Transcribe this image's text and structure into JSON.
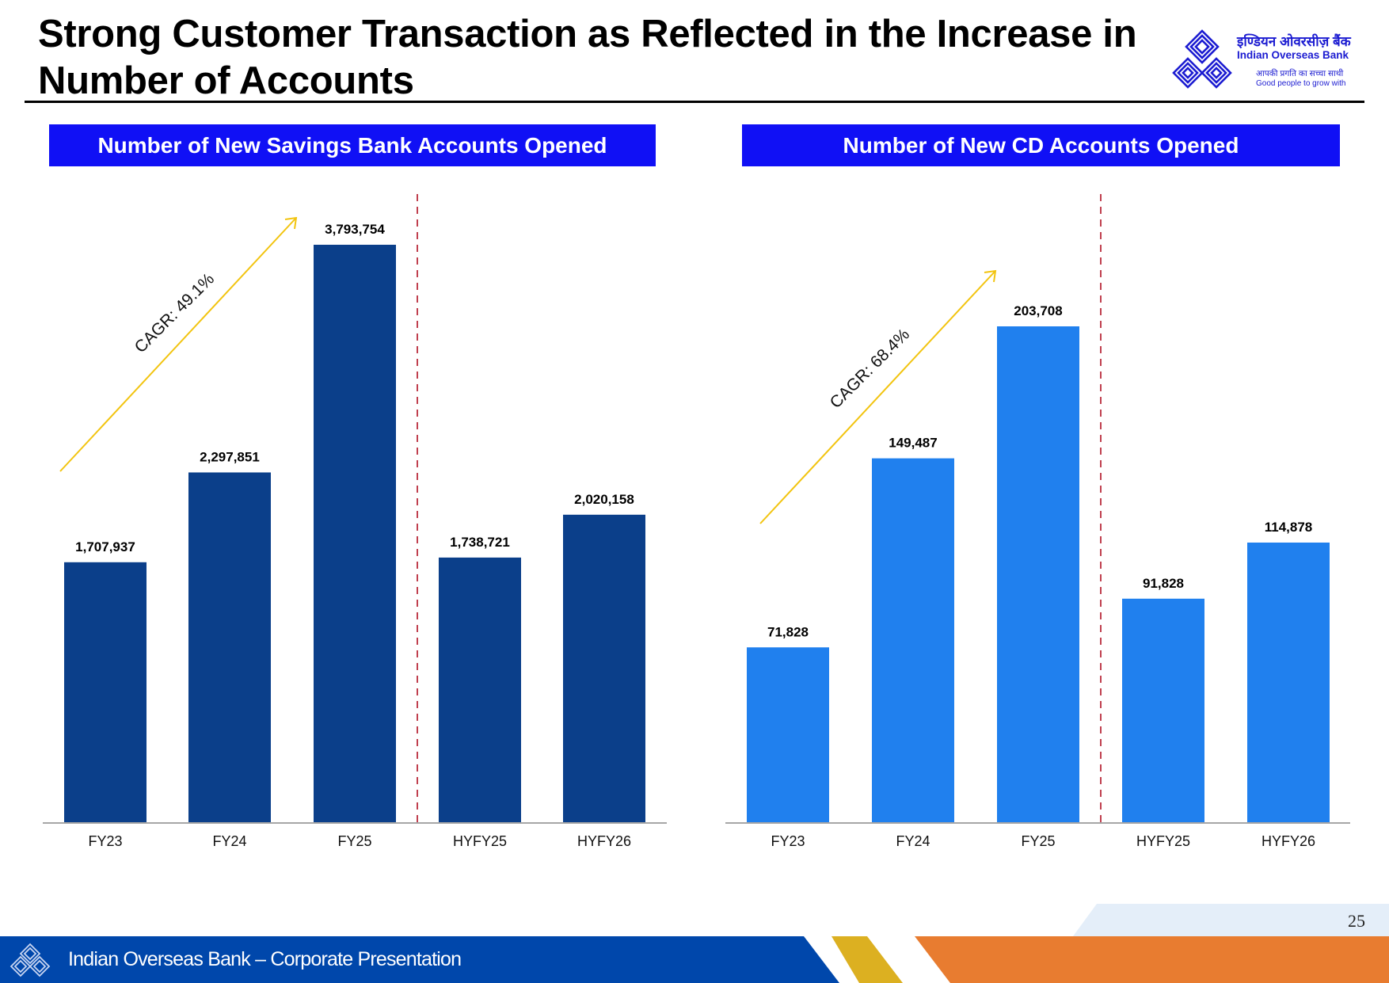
{
  "slide": {
    "title": "Strong Customer Transaction as Reflected in the Increase in Number of Accounts",
    "page_number": "25",
    "footer_text": "Indian Overseas Bank – Corporate Presentation"
  },
  "logo": {
    "hindi_name": "इण्डियन ओवरसीज़ बैंक",
    "english_name": "Indian Overseas Bank",
    "hindi_tagline": "आपकी प्रगति का सच्चा साथी",
    "english_tagline": "Good people to grow with"
  },
  "colors": {
    "header_blue": "#1010f5",
    "savings_bar": "#0b3f8a",
    "cd_bar": "#2080ee",
    "cagr_arrow": "#f2c40f",
    "divider": "#c0404f",
    "footer_blue": "#0047ab",
    "footer_yellow": "#dcb021",
    "footer_orange": "#e87c30"
  },
  "chart_data": [
    {
      "type": "bar",
      "title": "Number of New Savings Bank Accounts Opened",
      "categories": [
        "FY23",
        "FY24",
        "FY25",
        "HYFY25",
        "HYFY26"
      ],
      "values": [
        1707937,
        2297851,
        3793754,
        1738721,
        2020158
      ],
      "value_labels": [
        "1,707,937",
        "2,297,851",
        "3,793,754",
        "1,738,721",
        "2,020,158"
      ],
      "annotation": "CAGR: 49.1%",
      "xlabel": "",
      "ylabel": "",
      "ylim": [
        0,
        3793754
      ],
      "grid": false,
      "divider_after_index": 2
    },
    {
      "type": "bar",
      "title": "Number of New CD Accounts Opened",
      "categories": [
        "FY23",
        "FY24",
        "FY25",
        "HYFY25",
        "HYFY26"
      ],
      "values": [
        71828,
        149487,
        203708,
        91828,
        114878
      ],
      "value_labels": [
        "71,828",
        "149,487",
        "203,708",
        "91,828",
        "114,878"
      ],
      "annotation": "CAGR: 68.4%",
      "xlabel": "",
      "ylabel": "",
      "ylim": [
        0,
        203708
      ],
      "grid": false,
      "divider_after_index": 2
    }
  ]
}
